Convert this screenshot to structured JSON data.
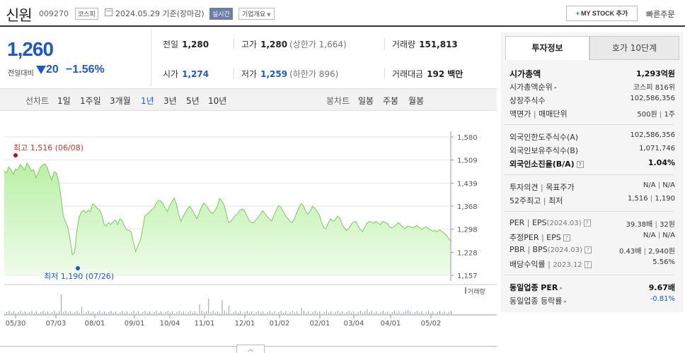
{
  "stock": {
    "name": "신원",
    "code": "009270",
    "market": "코스피",
    "date": "2024.05.29 기준(장마감)",
    "realtime": "실시간",
    "corp_info": "기업개요",
    "my_stock": "MY STOCK 추가",
    "fast_order": "빠른주문"
  },
  "quote": {
    "price": "1,260",
    "change_label": "전일대비",
    "change": "20",
    "change_pct": "−1.56%",
    "prev_label": "전일",
    "prev": "1,280",
    "high_label": "고가",
    "high": "1,280",
    "upper_limit": "(상한가 1,664)",
    "volume_label": "거래량",
    "volume": "151,813",
    "open_label": "시가",
    "open": "1,274",
    "low_label": "저가",
    "low": "1,259",
    "lower_limit": "(하한가 896)",
    "amount_label": "거래대금",
    "amount": "192",
    "amount_unit": "백만"
  },
  "period": {
    "line_label": "선차트",
    "line_items": [
      "1일",
      "1주일",
      "3개월",
      "1년",
      "3년",
      "5년",
      "10년"
    ],
    "active": "1년",
    "candle_label": "봉차트",
    "candle_items": [
      "일봉",
      "주봉",
      "월봉"
    ]
  },
  "chart_data": {
    "type": "area",
    "x_ticks": [
      "05/30",
      "07/03",
      "08/01",
      "09/01",
      "10/04",
      "11/01",
      "12/01",
      "01/02",
      "02/01",
      "03/04",
      "04/01",
      "05/02"
    ],
    "y_ticks": [
      "1,580",
      "1,509",
      "1,439",
      "1,368",
      "1,298",
      "1,228",
      "1,157"
    ],
    "ylim": [
      1157,
      1580
    ],
    "high_label": "최고 1,516 (06/08)",
    "low_label": "최저 1,190 (07/26)",
    "volume_label": "거래량",
    "values": [
      1476,
      1470,
      1488,
      1480,
      1465,
      1482,
      1478,
      1496,
      1488,
      1478,
      1500,
      1490,
      1476,
      1480,
      1455,
      1470,
      1488,
      1494,
      1498,
      1486,
      1464,
      1448,
      1474,
      1470,
      1444,
      1398,
      1340,
      1320,
      1306,
      1268,
      1220,
      1226,
      1290,
      1334,
      1350,
      1356,
      1348,
      1356,
      1352,
      1376,
      1370,
      1362,
      1358,
      1342,
      1315,
      1308,
      1318,
      1312,
      1320,
      1326,
      1312,
      1330,
      1324,
      1308,
      1296,
      1294,
      1290,
      1258,
      1230,
      1248,
      1264,
      1296,
      1338,
      1344,
      1350,
      1358,
      1362,
      1376,
      1386,
      1384,
      1376,
      1362,
      1352,
      1370,
      1382,
      1394,
      1374,
      1342,
      1322,
      1338,
      1350,
      1362,
      1368,
      1356,
      1342,
      1330,
      1348,
      1366,
      1378,
      1372,
      1362,
      1350,
      1346,
      1356,
      1368,
      1392,
      1384,
      1372,
      1344,
      1318,
      1322,
      1332,
      1340,
      1346,
      1356,
      1360,
      1354,
      1340,
      1326,
      1318,
      1318,
      1326,
      1334,
      1344,
      1354,
      1346,
      1336,
      1330,
      1322,
      1342,
      1356,
      1370,
      1366,
      1354,
      1340,
      1332,
      1322,
      1318,
      1330,
      1348,
      1364,
      1376,
      1370,
      1352,
      1344,
      1354,
      1368,
      1362,
      1352,
      1342,
      1320,
      1302,
      1300,
      1318,
      1330,
      1322,
      1326,
      1338,
      1332,
      1314,
      1302,
      1294,
      1300,
      1312,
      1320,
      1322,
      1310,
      1298,
      1290,
      1304,
      1316,
      1322,
      1320,
      1316,
      1322,
      1316,
      1312,
      1322,
      1318,
      1316,
      1306,
      1302,
      1306,
      1312,
      1318,
      1310,
      1304,
      1300,
      1308,
      1306,
      1302,
      1304,
      1310,
      1304,
      1298,
      1300,
      1306,
      1300,
      1296,
      1292,
      1294,
      1290,
      1296,
      1292,
      1286,
      1280,
      1270,
      1262
    ]
  },
  "info": {
    "tab_invest": "투자정보",
    "tab_orderbook": "호가 10단계",
    "mkt_cap_label": "시가총액",
    "mkt_cap": "1,293억원",
    "mkt_rank_label": "시가총액순위",
    "mkt_rank": "코스피 816위",
    "shares_label": "상장주식수",
    "shares": "102,586,356",
    "par_label": "액면가",
    "unit_label": "매매단위",
    "par": "500원",
    "unit": "1주",
    "foreign_limit_label": "외국인한도주식수(A)",
    "foreign_limit": "102,586,356",
    "foreign_hold_label": "외국인보유주식수(B)",
    "foreign_hold": "1,071,746",
    "foreign_ratio_label": "외국인소진율(B/A)",
    "foreign_ratio": "1.04%",
    "opinion_label": "투자의견",
    "target_label": "목표주가",
    "opinion": "N/A",
    "target": "N/A",
    "w52_high_label": "52주최고",
    "w52_low_label": "최저",
    "w52_high": "1,516",
    "w52_low": "1,190",
    "per_label": "PER",
    "eps_label": "EPS",
    "per_period": "(2024.03)",
    "per": "39.38배",
    "eps": "32원",
    "est_per_label": "추정PER",
    "est_eps_label": "EPS",
    "est_per": "N/A",
    "est_eps": "N/A",
    "pbr_label": "PBR",
    "bps_label": "BPS",
    "pbr_period": "(2024.03)",
    "pbr": "0.43배",
    "bps": "2,940원",
    "div_label": "배당수익률",
    "div_period": "2023.12",
    "div": "5.56%",
    "sector_per_label": "동일업종 PER",
    "sector_per": "9.67배",
    "sector_chg_label": "동일업종 등락률",
    "sector_chg": "-0.81%"
  }
}
